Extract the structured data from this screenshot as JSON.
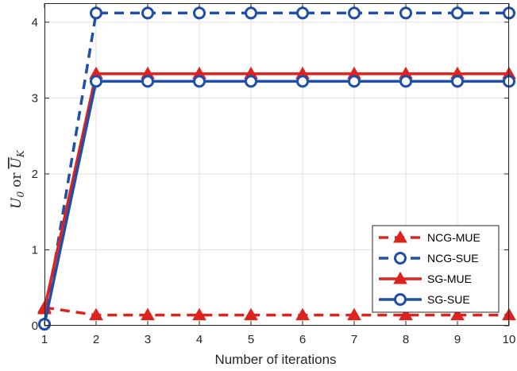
{
  "chart_data": {
    "type": "line",
    "xlabel": "Number of iterations",
    "ylabel_parts": [
      "U",
      "0",
      "or",
      "U",
      "K"
    ],
    "x": [
      1,
      2,
      3,
      4,
      5,
      6,
      7,
      8,
      9,
      10
    ],
    "xlim": [
      1,
      10
    ],
    "ylim": [
      0,
      4.25
    ],
    "xticks": [
      "1",
      "2",
      "3",
      "4",
      "5",
      "6",
      "7",
      "8",
      "9",
      "10"
    ],
    "yticks": [
      "0",
      "1",
      "2",
      "3",
      "4"
    ],
    "grid": true,
    "legend_position": "bottom-right",
    "series": [
      {
        "name": "NCG-MUE",
        "color": "#e0221f",
        "dash": "dashed",
        "marker": "triangle",
        "values": [
          0.24,
          0.14,
          0.14,
          0.14,
          0.14,
          0.14,
          0.14,
          0.14,
          0.14,
          0.14
        ]
      },
      {
        "name": "NCG-SUE",
        "color": "#1f4fa8",
        "dash": "dashed",
        "marker": "circle",
        "values": [
          0.02,
          4.12,
          4.12,
          4.12,
          4.12,
          4.12,
          4.12,
          4.12,
          4.12,
          4.12
        ]
      },
      {
        "name": "SG-MUE",
        "color": "#e0221f",
        "dash": "solid",
        "marker": "triangle",
        "values": [
          0.22,
          3.32,
          3.32,
          3.32,
          3.32,
          3.32,
          3.32,
          3.32,
          3.32,
          3.32
        ]
      },
      {
        "name": "SG-SUE",
        "color": "#1f4fa8",
        "dash": "solid",
        "marker": "circle",
        "values": [
          0.02,
          3.22,
          3.22,
          3.22,
          3.22,
          3.22,
          3.22,
          3.22,
          3.22,
          3.22
        ]
      }
    ]
  }
}
